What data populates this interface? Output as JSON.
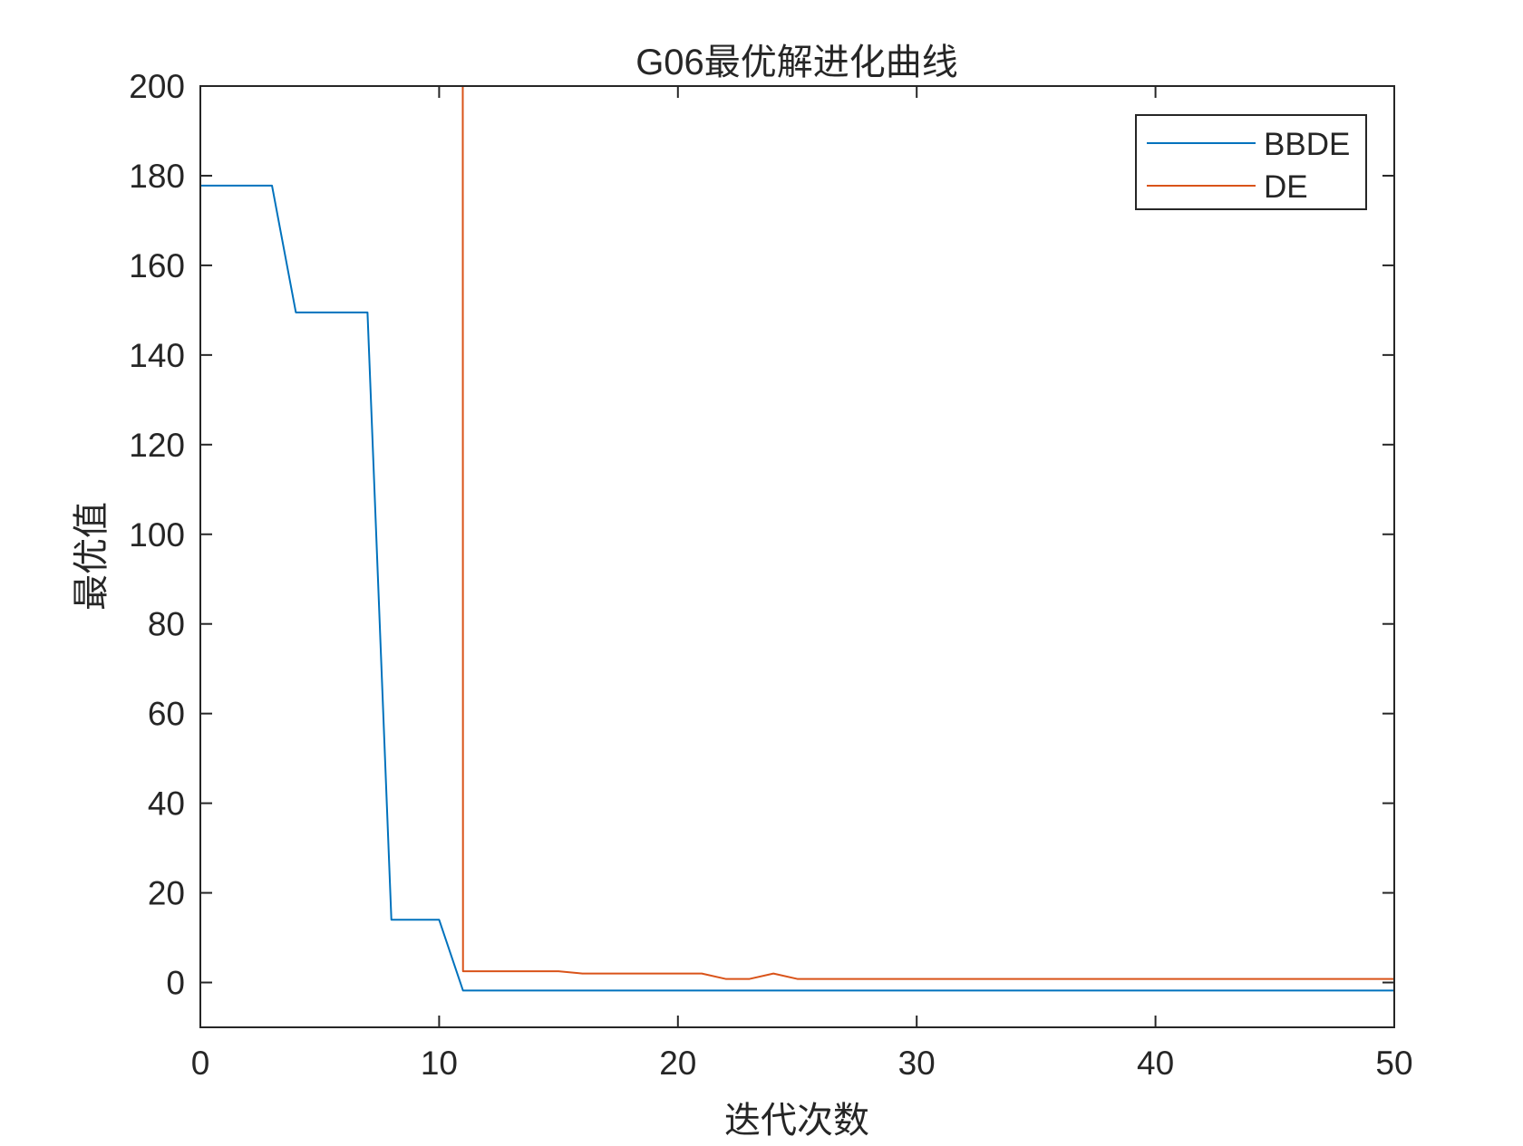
{
  "chart_data": {
    "type": "line",
    "title": "G06最优解进化曲线",
    "xlabel": "迭代次数",
    "ylabel": "最优值",
    "xlim": [
      0,
      50
    ],
    "ylim": [
      -10,
      200
    ],
    "x_ticks": [
      0,
      10,
      20,
      30,
      40,
      50
    ],
    "y_ticks": [
      0,
      20,
      40,
      60,
      80,
      100,
      120,
      140,
      160,
      180,
      200
    ],
    "grid": false,
    "legend_position": "top-right",
    "series": [
      {
        "name": "BBDE",
        "color": "#0072BD",
        "x": [
          0,
          1,
          2,
          3,
          4,
          5,
          6,
          7,
          8,
          9,
          10,
          11,
          12,
          13,
          14,
          15,
          16,
          17,
          18,
          19,
          20,
          21,
          22,
          23,
          24,
          25,
          26,
          27,
          28,
          29,
          30,
          31,
          32,
          33,
          34,
          35,
          36,
          37,
          38,
          39,
          40,
          41,
          42,
          43,
          44,
          45,
          46,
          47,
          48,
          49,
          50
        ],
        "y": [
          177.8,
          177.8,
          177.8,
          177.8,
          149.5,
          149.5,
          149.5,
          149.5,
          14,
          14,
          14,
          -1.8,
          -1.8,
          -1.8,
          -1.8,
          -1.8,
          -1.8,
          -1.8,
          -1.8,
          -1.8,
          -1.8,
          -1.8,
          -1.8,
          -1.8,
          -1.8,
          -1.8,
          -1.8,
          -1.8,
          -1.8,
          -1.8,
          -1.8,
          -1.8,
          -1.8,
          -1.8,
          -1.8,
          -1.8,
          -1.8,
          -1.8,
          -1.8,
          -1.8,
          -1.8,
          -1.8,
          -1.8,
          -1.8,
          -1.8,
          -1.8,
          -1.8,
          -1.8,
          -1.8,
          -1.8,
          -1.8
        ]
      },
      {
        "name": "DE",
        "color": "#D95319",
        "x": [
          10.99,
          11,
          12,
          13,
          14,
          15,
          16,
          17,
          18,
          19,
          20,
          21,
          22,
          23,
          24,
          25,
          26,
          27,
          28,
          29,
          30,
          31,
          32,
          33,
          34,
          35,
          36,
          37,
          38,
          39,
          40,
          41,
          42,
          43,
          44,
          45,
          46,
          47,
          48,
          49,
          50
        ],
        "y": [
          200,
          2.5,
          2.5,
          2.5,
          2.5,
          2.5,
          2,
          2,
          2,
          2,
          2,
          2,
          0.8,
          0.8,
          2,
          0.8,
          0.8,
          0.8,
          0.8,
          0.8,
          0.8,
          0.8,
          0.8,
          0.8,
          0.8,
          0.8,
          0.8,
          0.8,
          0.8,
          0.8,
          0.8,
          0.8,
          0.8,
          0.8,
          0.8,
          0.8,
          0.8,
          0.8,
          0.8,
          0.8,
          0.8
        ]
      }
    ]
  }
}
